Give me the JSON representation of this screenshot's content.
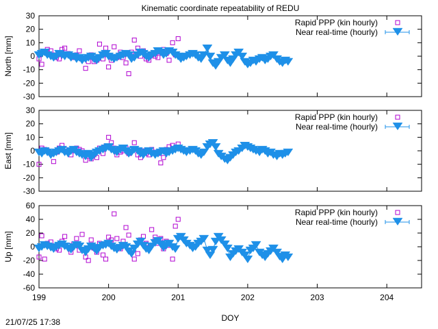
{
  "title": "Kinematic coordinate repeatability of REDU",
  "timestamp": "21/07/25 17:38",
  "chart_data": [
    {
      "type": "scatter",
      "ylabel": "North [mm]",
      "ylim": [
        -30,
        30
      ],
      "yticks": [
        "30",
        "20",
        "10",
        "0",
        "-10",
        "-20",
        "-30"
      ],
      "xlim": [
        199,
        204.5
      ],
      "legend_position": "top-right",
      "series": [
        {
          "name": "Rapid PPP (kin hourly)",
          "color": "#b000d0",
          "marker": "square",
          "x": [
            199.0,
            199.04,
            199.08,
            199.12,
            199.17,
            199.21,
            199.25,
            199.29,
            199.33,
            199.37,
            199.42,
            199.46,
            199.5,
            199.54,
            199.58,
            199.62,
            199.67,
            199.71,
            199.75,
            199.79,
            199.83,
            199.87,
            199.92,
            199.96,
            200.0,
            200.04,
            200.08,
            200.12,
            200.17,
            200.21,
            200.25,
            200.29,
            200.33,
            200.37,
            200.42,
            200.46,
            200.5,
            200.54,
            200.58,
            200.62,
            200.67,
            200.71,
            200.75,
            200.79,
            200.83,
            200.87,
            200.92,
            200.96,
            201.0
          ],
          "y": [
            -2,
            -6,
            3,
            5,
            4,
            1,
            -1,
            -2,
            5,
            6,
            2,
            0,
            -1,
            1,
            4,
            -2,
            -9,
            -4,
            1,
            -4,
            -3,
            9,
            -2,
            6,
            -8,
            -3,
            7,
            -1,
            3,
            -1,
            -5,
            -13,
            3,
            12,
            6,
            0,
            4,
            -2,
            -3,
            1,
            0,
            -1,
            3,
            5,
            2,
            -3,
            10,
            1,
            13
          ]
        },
        {
          "name": "Near real-time (hourly)",
          "color": "#1e90e8",
          "marker": "triangle-down",
          "x": [
            199.0,
            199.04,
            199.08,
            199.12,
            199.17,
            199.21,
            199.25,
            199.29,
            199.33,
            199.37,
            199.42,
            199.46,
            199.5,
            199.54,
            199.58,
            199.62,
            199.67,
            199.71,
            199.75,
            199.79,
            199.83,
            199.87,
            199.92,
            199.96,
            200.0,
            200.04,
            200.08,
            200.12,
            200.17,
            200.21,
            200.25,
            200.29,
            200.33,
            200.37,
            200.42,
            200.46,
            200.5,
            200.54,
            200.58,
            200.62,
            200.67,
            200.71,
            200.75,
            200.79,
            200.83,
            200.87,
            200.92,
            200.96,
            201.0,
            201.04,
            201.08,
            201.12,
            201.17,
            201.21,
            201.25,
            201.29,
            201.33,
            201.37,
            201.42,
            201.46,
            201.5,
            201.54,
            201.58,
            201.62,
            201.67,
            201.71,
            201.75,
            201.79,
            201.83,
            201.87,
            201.92,
            201.96,
            202.0,
            202.04,
            202.08,
            202.12,
            202.17,
            202.21,
            202.25,
            202.29,
            202.33,
            202.37,
            202.42,
            202.46,
            202.5,
            202.54,
            202.58
          ],
          "y": [
            1,
            2,
            3,
            1,
            0,
            -1,
            0,
            2,
            1,
            0,
            1,
            -1,
            0,
            -2,
            -1,
            -3,
            -2,
            -1,
            0,
            -2,
            -3,
            -1,
            1,
            2,
            0,
            -1,
            -2,
            -1,
            0,
            1,
            2,
            1,
            -2,
            -1,
            1,
            3,
            2,
            0,
            -1,
            1,
            2,
            4,
            3,
            1,
            2,
            4,
            3,
            1,
            0,
            -2,
            -1,
            0,
            1,
            2,
            1,
            -1,
            -2,
            1,
            6,
            0,
            -5,
            -7,
            -4,
            -1,
            1,
            -3,
            -5,
            -2,
            1,
            3,
            0,
            -4,
            -6,
            -5,
            -3,
            -4,
            -2,
            -1,
            -3,
            -2,
            0,
            1,
            -2,
            -4,
            -5,
            -3,
            -4
          ]
        }
      ]
    },
    {
      "type": "scatter",
      "ylabel": "East [mm]",
      "ylim": [
        -30,
        30
      ],
      "yticks": [
        "30",
        "20",
        "10",
        "0",
        "-10",
        "-20",
        "-30"
      ],
      "xlim": [
        199,
        204.5
      ],
      "legend_position": "top-right",
      "series": [
        {
          "name": "Rapid PPP (kin hourly)",
          "color": "#b000d0",
          "marker": "square",
          "x": [
            199.0,
            199.04,
            199.08,
            199.12,
            199.17,
            199.21,
            199.25,
            199.29,
            199.33,
            199.37,
            199.42,
            199.46,
            199.5,
            199.54,
            199.58,
            199.62,
            199.67,
            199.71,
            199.75,
            199.79,
            199.83,
            199.87,
            199.92,
            199.96,
            200.0,
            200.04,
            200.08,
            200.12,
            200.17,
            200.21,
            200.25,
            200.29,
            200.33,
            200.37,
            200.42,
            200.46,
            200.5,
            200.54,
            200.58,
            200.62,
            200.67,
            200.71,
            200.75,
            200.79,
            200.83,
            200.87,
            200.92,
            200.96,
            201.0
          ],
          "y": [
            -10,
            2,
            1,
            0,
            -2,
            -8,
            -1,
            2,
            4,
            1,
            -1,
            -3,
            0,
            2,
            1,
            0,
            -7,
            -4,
            -6,
            -3,
            -5,
            2,
            -2,
            3,
            10,
            6,
            2,
            -3,
            -1,
            0,
            2,
            -2,
            1,
            6,
            -3,
            -5,
            0,
            -2,
            -3,
            1,
            -1,
            -2,
            -9,
            -5,
            1,
            3,
            4,
            2,
            5
          ]
        },
        {
          "name": "Near real-time (hourly)",
          "color": "#1e90e8",
          "marker": "triangle-down",
          "x": [
            199.0,
            199.04,
            199.08,
            199.12,
            199.17,
            199.21,
            199.25,
            199.29,
            199.33,
            199.37,
            199.42,
            199.46,
            199.5,
            199.54,
            199.58,
            199.62,
            199.67,
            199.71,
            199.75,
            199.79,
            199.83,
            199.87,
            199.92,
            199.96,
            200.0,
            200.04,
            200.08,
            200.12,
            200.17,
            200.21,
            200.25,
            200.29,
            200.33,
            200.37,
            200.42,
            200.46,
            200.5,
            200.54,
            200.58,
            200.62,
            200.67,
            200.71,
            200.75,
            200.79,
            200.83,
            200.87,
            200.92,
            200.96,
            201.0,
            201.04,
            201.08,
            201.12,
            201.17,
            201.21,
            201.25,
            201.29,
            201.33,
            201.37,
            201.42,
            201.46,
            201.5,
            201.54,
            201.58,
            201.62,
            201.67,
            201.71,
            201.75,
            201.79,
            201.83,
            201.87,
            201.92,
            201.96,
            202.0,
            202.04,
            202.08,
            202.12,
            202.17,
            202.21,
            202.25,
            202.29,
            202.33,
            202.37,
            202.42,
            202.46,
            202.5,
            202.54,
            202.58
          ],
          "y": [
            -1,
            -2,
            0,
            -1,
            -3,
            -2,
            -1,
            0,
            1,
            -1,
            -2,
            0,
            1,
            -1,
            -2,
            -3,
            -4,
            -2,
            -5,
            -3,
            -1,
            0,
            1,
            2,
            3,
            1,
            0,
            -1,
            1,
            2,
            0,
            -2,
            -1,
            1,
            0,
            -2,
            -3,
            -1,
            0,
            -2,
            -3,
            -2,
            -1,
            0,
            -2,
            -1,
            0,
            1,
            2,
            1,
            0,
            -1,
            0,
            1,
            0,
            -2,
            -3,
            -1,
            3,
            5,
            6,
            3,
            -2,
            -4,
            -6,
            -7,
            -5,
            -3,
            -1,
            0,
            2,
            4,
            3,
            2,
            1,
            0,
            -1,
            1,
            0,
            -2,
            -1,
            -3,
            -4,
            -2,
            -3,
            -2,
            -1
          ]
        }
      ]
    },
    {
      "type": "scatter",
      "ylabel": "Up [mm]",
      "xlabel": "DOY",
      "ylim": [
        -60,
        60
      ],
      "yticks": [
        "60",
        "40",
        "20",
        "0",
        "-20",
        "-40",
        "-60"
      ],
      "xlim": [
        199,
        204.5
      ],
      "xticks": [
        "199",
        "200",
        "201",
        "202",
        "203",
        "204"
      ],
      "legend_position": "top-right",
      "series": [
        {
          "name": "Rapid PPP (kin hourly)",
          "color": "#b000d0",
          "marker": "square",
          "x": [
            199.0,
            199.04,
            199.08,
            199.12,
            199.17,
            199.21,
            199.25,
            199.29,
            199.33,
            199.37,
            199.42,
            199.46,
            199.5,
            199.54,
            199.58,
            199.62,
            199.67,
            199.71,
            199.75,
            199.79,
            199.83,
            199.87,
            199.92,
            199.96,
            200.0,
            200.04,
            200.08,
            200.12,
            200.17,
            200.21,
            200.25,
            200.29,
            200.33,
            200.37,
            200.42,
            200.46,
            200.5,
            200.54,
            200.58,
            200.62,
            200.67,
            200.71,
            200.75,
            200.79,
            200.83,
            200.87,
            200.92,
            200.96,
            201.0
          ],
          "y": [
            -15,
            16,
            -18,
            5,
            7,
            1,
            -3,
            -5,
            8,
            15,
            2,
            -8,
            4,
            12,
            -5,
            18,
            -15,
            -20,
            10,
            -2,
            -8,
            5,
            -12,
            -18,
            14,
            10,
            48,
            12,
            -3,
            8,
            28,
            17,
            -5,
            -18,
            -10,
            10,
            15,
            5,
            -2,
            25,
            14,
            5,
            12,
            -3,
            8,
            2,
            -18,
            30,
            40
          ]
        },
        {
          "name": "Near real-time (hourly)",
          "color": "#1e90e8",
          "marker": "triangle-down",
          "x": [
            199.0,
            199.04,
            199.08,
            199.12,
            199.17,
            199.21,
            199.25,
            199.29,
            199.33,
            199.37,
            199.42,
            199.46,
            199.5,
            199.54,
            199.58,
            199.62,
            199.67,
            199.71,
            199.75,
            199.79,
            199.83,
            199.87,
            199.92,
            199.96,
            200.0,
            200.04,
            200.08,
            200.12,
            200.17,
            200.21,
            200.25,
            200.29,
            200.33,
            200.37,
            200.42,
            200.46,
            200.5,
            200.54,
            200.58,
            200.62,
            200.67,
            200.71,
            200.75,
            200.79,
            200.83,
            200.87,
            200.92,
            200.96,
            201.0,
            201.04,
            201.08,
            201.12,
            201.17,
            201.21,
            201.25,
            201.29,
            201.33,
            201.37,
            201.42,
            201.46,
            201.5,
            201.54,
            201.58,
            201.62,
            201.67,
            201.71,
            201.75,
            201.79,
            201.83,
            201.87,
            201.92,
            201.96,
            202.0,
            202.04,
            202.08,
            202.12,
            202.17,
            202.21,
            202.25,
            202.29,
            202.33,
            202.37,
            202.42,
            202.46,
            202.5,
            202.54,
            202.58
          ],
          "y": [
            -2,
            0,
            3,
            1,
            -1,
            -3,
            0,
            2,
            4,
            1,
            -2,
            -4,
            0,
            3,
            1,
            -5,
            -8,
            -3,
            1,
            -2,
            -6,
            -1,
            2,
            3,
            5,
            1,
            -2,
            -4,
            -1,
            2,
            0,
            -6,
            -10,
            -2,
            4,
            8,
            2,
            -3,
            -5,
            1,
            6,
            9,
            4,
            -1,
            2,
            5,
            0,
            -3,
            12,
            15,
            10,
            5,
            2,
            -2,
            0,
            5,
            8,
            12,
            -5,
            -12,
            -4,
            8,
            15,
            10,
            4,
            -2,
            -15,
            -10,
            -6,
            -3,
            -8,
            -12,
            -18,
            -5,
            -2,
            3,
            -8,
            -12,
            -15,
            -10,
            -6,
            -2,
            -8,
            -14,
            -18,
            -12,
            -15
          ]
        }
      ]
    }
  ]
}
